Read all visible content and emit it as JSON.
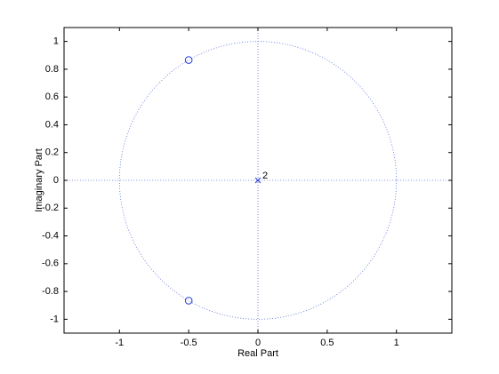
{
  "chart_data": {
    "type": "scatter",
    "x_label": "Real Part",
    "y_label": "Imaginary Part",
    "xlim": [
      -1.4,
      1.4
    ],
    "ylim": [
      -1.1,
      1.1
    ],
    "xticks": [
      -1,
      -0.5,
      0,
      0.5,
      1
    ],
    "yticks": [
      -1,
      -0.8,
      -0.6,
      -0.4,
      -0.2,
      0,
      0.2,
      0.4,
      0.6,
      0.8,
      1
    ],
    "series": [
      {
        "marker": "o",
        "color": "#2a3fd6",
        "x": [
          -0.5,
          -0.5
        ],
        "values": [
          0.866,
          -0.866
        ]
      },
      {
        "marker": "x",
        "color": "#2a3fd6",
        "x": [
          0
        ],
        "values": [
          0
        ],
        "multiplicity": [
          2
        ]
      }
    ]
  }
}
